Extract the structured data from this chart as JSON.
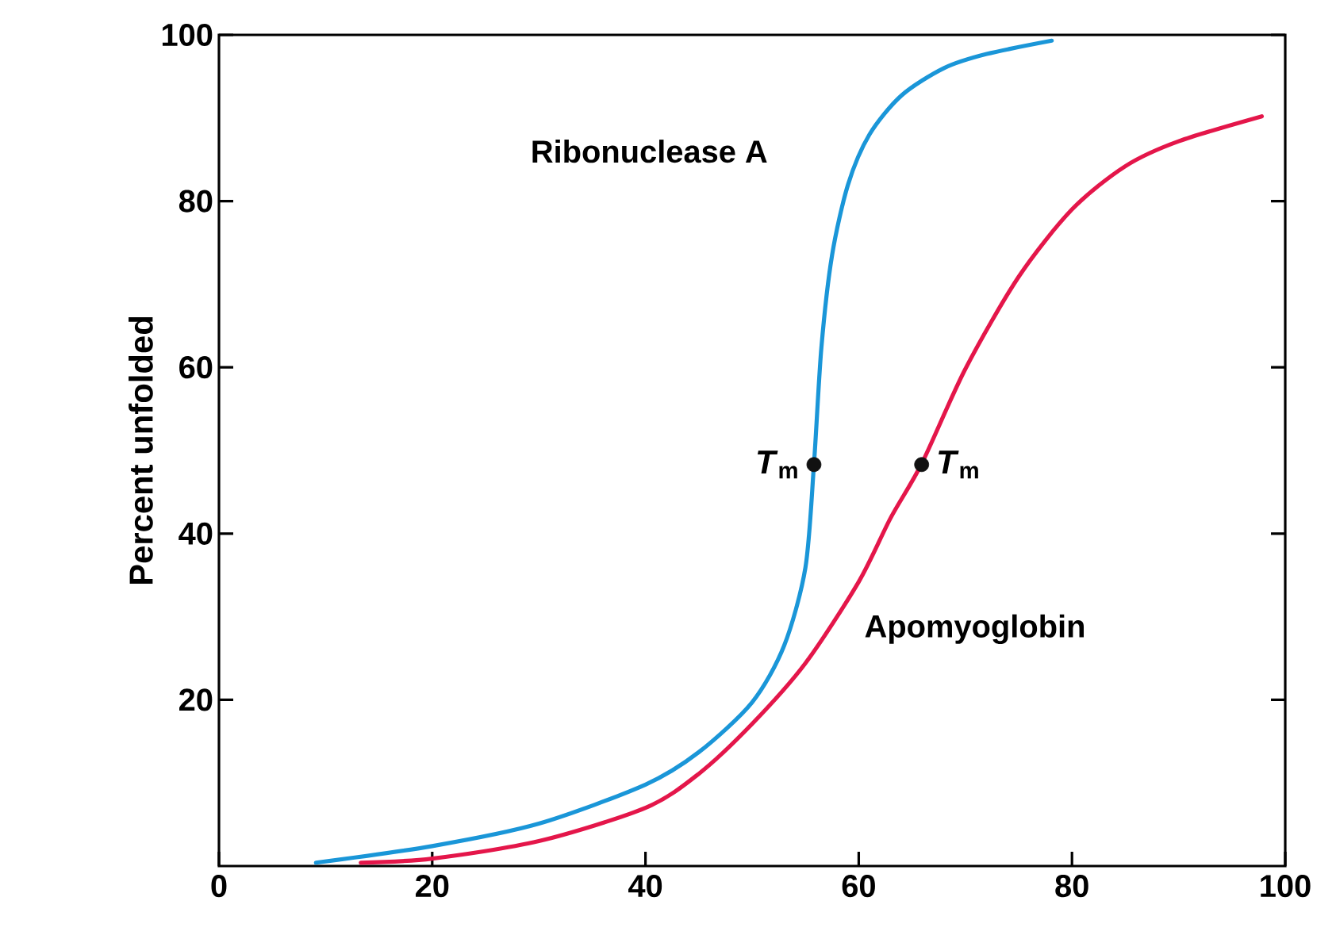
{
  "chart_data": {
    "type": "line",
    "ylabel": "Percent unfolded",
    "xlim": [
      0,
      100
    ],
    "ylim": [
      0,
      100
    ],
    "xticks": [
      0,
      20,
      40,
      60,
      80,
      100
    ],
    "yticks": [
      20,
      40,
      60,
      80,
      100
    ],
    "grid": false,
    "legend": false,
    "line_style": "solid",
    "series": [
      {
        "name": "Ribonuclease A",
        "color": "#1a96d8",
        "x": [
          9.1,
          20,
          30,
          40,
          45,
          50,
          53,
          55,
          55.8,
          56.5,
          57.5,
          59,
          61,
          64,
          68,
          72,
          78.1
        ],
        "values": [
          0.4,
          2.4,
          5.1,
          9.8,
          13.7,
          19.7,
          26.5,
          35.9,
          48.3,
          62.4,
          73.5,
          82,
          88,
          92.7,
          96,
          97.7,
          99.3
        ]
      },
      {
        "name": "Apomyoglobin",
        "color": "#e4164a",
        "x": [
          13.3,
          20,
          30,
          40,
          45,
          50,
          55,
          60,
          63,
          65.9,
          70,
          75,
          80,
          85,
          90,
          97.8
        ],
        "values": [
          0.4,
          0.9,
          3,
          7,
          11.1,
          17.1,
          24.4,
          34.2,
          41.9,
          48.4,
          59.8,
          70.9,
          79,
          84.2,
          87.2,
          90.2
        ]
      },
      {
        "type": "scatter",
        "color": "#111111",
        "x": [
          55.8,
          65.9
        ],
        "values": [
          48.3,
          48.3
        ]
      }
    ],
    "annotations": [
      {
        "text": "*T*$_{m}$",
        "x": 55.8,
        "y": 48.3
      },
      {
        "text": "*T*$_{m}$",
        "x": 65.9,
        "y": 48.3
      }
    ]
  }
}
